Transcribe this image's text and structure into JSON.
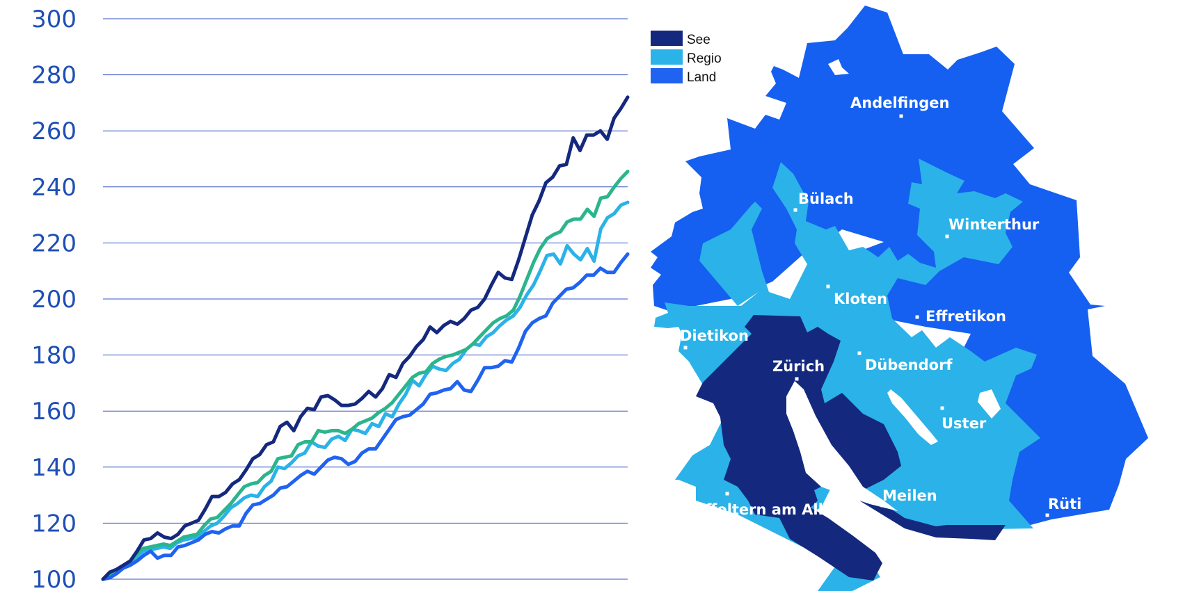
{
  "chart_data": {
    "type": "line",
    "title": "",
    "xlabel": "",
    "ylabel": "",
    "ylim": [
      100,
      300
    ],
    "yticks": [
      100,
      120,
      140,
      160,
      180,
      200,
      220,
      240,
      260,
      280,
      300
    ],
    "grid": true,
    "legend_position": "top-right",
    "series": [
      {
        "name": "See",
        "color": "#14297e",
        "values": [
          100,
          102.5,
          103.5,
          105,
          106.5,
          110,
          114,
          114.5,
          116.5,
          115,
          114.5,
          116,
          119,
          120,
          121,
          125,
          129.5,
          129.5,
          131,
          134,
          135.5,
          139,
          143,
          144.5,
          148,
          149,
          154.5,
          156,
          153,
          158,
          161,
          160.5,
          165,
          165.5,
          164,
          162,
          162,
          162.5,
          164.5,
          167,
          165,
          168,
          173,
          172,
          177,
          179.5,
          183,
          185.5,
          190,
          188,
          190.5,
          192,
          191,
          193,
          196,
          197,
          200,
          205,
          209.5,
          207.5,
          207,
          214,
          222,
          230,
          235,
          241.5,
          243.5,
          247.5,
          248,
          257.5,
          253,
          258.5,
          258.5,
          260,
          257,
          264.5,
          268,
          272
        ]
      },
      {
        "name": "",
        "color": "#2bb58c",
        "values": [
          100,
          101.5,
          103,
          104.5,
          106,
          109,
          111,
          111.5,
          112,
          112.5,
          112,
          113.5,
          115,
          115.5,
          116,
          119,
          121.5,
          122,
          124.5,
          127,
          130,
          133,
          134,
          134.5,
          137,
          138.5,
          143,
          143.5,
          144,
          148,
          149,
          149,
          153,
          152.5,
          153,
          153,
          152,
          153.5,
          155.5,
          156.5,
          157.5,
          159.5,
          161,
          163,
          166,
          169,
          172,
          173.5,
          174,
          177,
          178.5,
          179.5,
          180,
          181,
          182,
          184,
          186.5,
          189,
          191.5,
          193,
          194,
          196,
          201,
          207,
          213,
          218,
          221.5,
          223,
          224,
          227.5,
          228.5,
          228.5,
          232,
          229.5,
          236,
          236.5,
          240,
          243,
          245.5
        ]
      },
      {
        "name": "Regio",
        "color": "#2bb2e8",
        "values": [
          100,
          101,
          102.5,
          104.5,
          105,
          107.5,
          110,
          110.5,
          111,
          111.5,
          111,
          113,
          114,
          114.5,
          115,
          117,
          119,
          120,
          122.5,
          125.5,
          127,
          129,
          130,
          129.5,
          133,
          135,
          140,
          139.5,
          141.5,
          144,
          145,
          149,
          147.5,
          147,
          150,
          151,
          149.5,
          153.5,
          153,
          152,
          155.5,
          154.5,
          159,
          158,
          162.5,
          166,
          171,
          169,
          173,
          176,
          175,
          174.5,
          177,
          178.5,
          182,
          184,
          183.5,
          186.5,
          188,
          190.5,
          192.5,
          194,
          197,
          201.5,
          205,
          210,
          215.5,
          216,
          212.5,
          219,
          216,
          214,
          218,
          213.5,
          225,
          229,
          230.5,
          233.5,
          234.5
        ]
      },
      {
        "name": "Land",
        "color": "#1f63f0",
        "values": [
          100,
          100.5,
          102,
          104,
          105,
          106.5,
          108.5,
          110,
          107.5,
          108.5,
          108.5,
          111.5,
          112,
          113,
          114,
          116,
          117,
          116.5,
          118,
          119,
          119,
          123.5,
          126.5,
          127,
          128.5,
          130,
          132.5,
          133,
          135,
          137,
          138.5,
          137.5,
          140,
          142.5,
          143.5,
          143,
          141,
          142,
          145,
          146.5,
          146.5,
          150,
          153.5,
          157,
          158,
          158.5,
          160.5,
          162.5,
          166,
          166.5,
          167.5,
          168,
          170.5,
          167.5,
          167,
          171,
          175.5,
          175.5,
          176,
          178,
          177.5,
          182.5,
          188.5,
          191.5,
          193,
          194,
          198.5,
          201,
          203.5,
          204,
          206,
          208.5,
          208.5,
          211,
          209.5,
          209.5,
          213,
          216
        ]
      }
    ]
  },
  "legend": [
    {
      "label": "See",
      "color": "#14297e"
    },
    {
      "label": "Regio",
      "color": "#2bb2e8"
    },
    {
      "label": "Land",
      "color": "#1f63f0"
    }
  ],
  "map": {
    "colors": {
      "see": "#14297e",
      "regio": "#2bb2e8",
      "land": "#1560f0"
    },
    "places": [
      "Andelfingen",
      "Bülach",
      "Winterthur",
      "Kloten",
      "Effretikon",
      "Dietikon",
      "Zürich",
      "Dübendorf",
      "Uster",
      "Meilen",
      "Affoltern am Albis",
      "Rüti"
    ]
  }
}
